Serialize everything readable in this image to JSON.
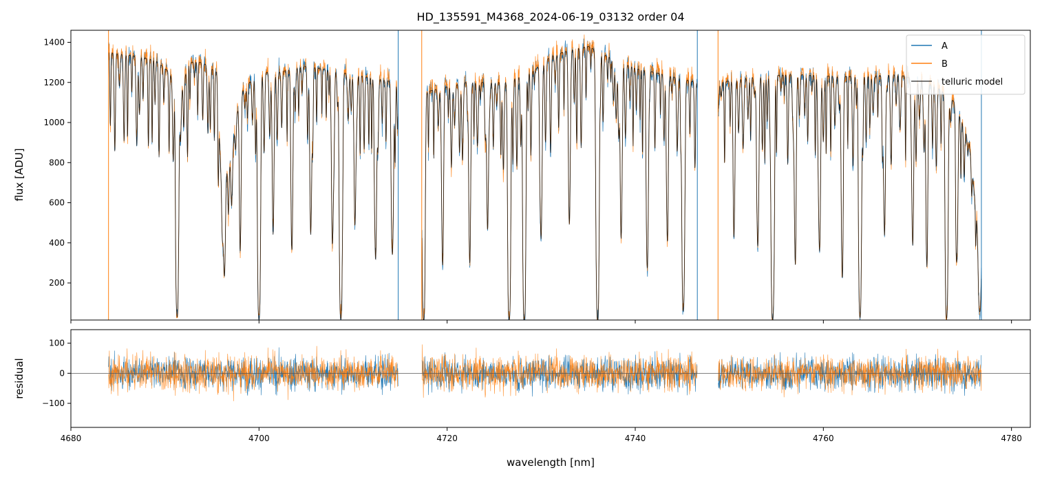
{
  "chart_data": [
    {
      "type": "line",
      "title": "HD_135591_M4368_2024-06-19_03132  order 04",
      "xlabel": "",
      "ylabel": "flux [ADU]",
      "xlim": [
        4680,
        4782
      ],
      "ylim": [
        15,
        1460
      ],
      "xticks": [
        4680,
        4700,
        4720,
        4740,
        4760,
        4780
      ],
      "yticks": [
        200,
        400,
        600,
        800,
        1000,
        1200,
        1400
      ],
      "show_x_tick_labels": false,
      "grid": false,
      "legend_position": "upper right",
      "series": [
        {
          "name": "A",
          "color": "#1f77b4"
        },
        {
          "name": "B",
          "color": "#ff7f0e"
        },
        {
          "name": "telluric model",
          "color": "#000000"
        }
      ],
      "x_coverage": [
        4684.0,
        4776.8
      ],
      "gaps": [
        [
          4714.8,
          4717.3
        ],
        [
          4746.6,
          4748.8
        ]
      ],
      "continuum": [
        [
          4684,
          1350
        ],
        [
          4687,
          1330
        ],
        [
          4689,
          1310
        ],
        [
          4690.5,
          1250
        ],
        [
          4691.5,
          1100
        ],
        [
          4692.5,
          1300
        ],
        [
          4694,
          1300
        ],
        [
          4695.5,
          1250
        ],
        [
          4696,
          700
        ],
        [
          4697,
          820
        ],
        [
          4698,
          1150
        ],
        [
          4700,
          1250
        ],
        [
          4702,
          1250
        ],
        [
          4705,
          1280
        ],
        [
          4710,
          1240
        ],
        [
          4714.5,
          1200
        ],
        [
          4717.5,
          1150
        ],
        [
          4722,
          1200
        ],
        [
          4726,
          1200
        ],
        [
          4729,
          1250
        ],
        [
          4731,
          1330
        ],
        [
          4733,
          1360
        ],
        [
          4735,
          1380
        ],
        [
          4737,
          1330
        ],
        [
          4740,
          1270
        ],
        [
          4743,
          1240
        ],
        [
          4746.5,
          1200
        ],
        [
          4749,
          1200
        ],
        [
          4753,
          1230
        ],
        [
          4757,
          1240
        ],
        [
          4761,
          1230
        ],
        [
          4765,
          1230
        ],
        [
          4768,
          1240
        ],
        [
          4772,
          1180
        ],
        [
          4774,
          1100
        ],
        [
          4775.5,
          900
        ],
        [
          4776.8,
          300
        ]
      ],
      "deep_lines": [
        [
          4691.3,
          30
        ],
        [
          4696.3,
          300
        ],
        [
          4700.0,
          18
        ],
        [
          4708.7,
          18
        ],
        [
          4717.5,
          18
        ],
        [
          4726.6,
          18
        ],
        [
          4728.2,
          18
        ],
        [
          4736.0,
          18
        ],
        [
          4745.1,
          60
        ],
        [
          4754.6,
          18
        ],
        [
          4763.9,
          30
        ],
        [
          4773.1,
          30
        ],
        [
          4776.6,
          60
        ]
      ],
      "moderate_lines": [
        [
          4698.0,
          520
        ],
        [
          4701.5,
          450
        ],
        [
          4703.5,
          380
        ],
        [
          4705.5,
          420
        ],
        [
          4707.8,
          380
        ],
        [
          4710.2,
          470
        ],
        [
          4712.4,
          300
        ],
        [
          4714.2,
          350
        ],
        [
          4719.5,
          370
        ],
        [
          4722.4,
          320
        ],
        [
          4724.3,
          450
        ],
        [
          4730.0,
          420
        ],
        [
          4733.0,
          480
        ],
        [
          4738.5,
          400
        ],
        [
          4741.3,
          320
        ],
        [
          4743.4,
          460
        ],
        [
          4750.5,
          470
        ],
        [
          4753.0,
          430
        ],
        [
          4757.0,
          370
        ],
        [
          4759.6,
          350
        ],
        [
          4762.0,
          300
        ],
        [
          4766.5,
          420
        ],
        [
          4769.5,
          370
        ],
        [
          4771.0,
          320
        ],
        [
          4774.2,
          300
        ]
      ]
    },
    {
      "type": "line",
      "title": "",
      "xlabel": "wavelength [nm]",
      "ylabel": "residual",
      "xlim": [
        4680,
        4782
      ],
      "ylim": [
        -180,
        145
      ],
      "xticks": [
        4680,
        4700,
        4720,
        4740,
        4760,
        4780
      ],
      "yticks": [
        -100,
        0,
        100
      ],
      "grid": false,
      "zero_line": 0,
      "series": [
        {
          "name": "A",
          "color": "#1f77b4"
        },
        {
          "name": "B",
          "color": "#ff7f0e"
        }
      ],
      "x_coverage": [
        4684.0,
        4776.8
      ],
      "gaps": [
        [
          4714.8,
          4717.3
        ],
        [
          4746.6,
          4748.8
        ]
      ],
      "typical_scatter": 40
    }
  ]
}
